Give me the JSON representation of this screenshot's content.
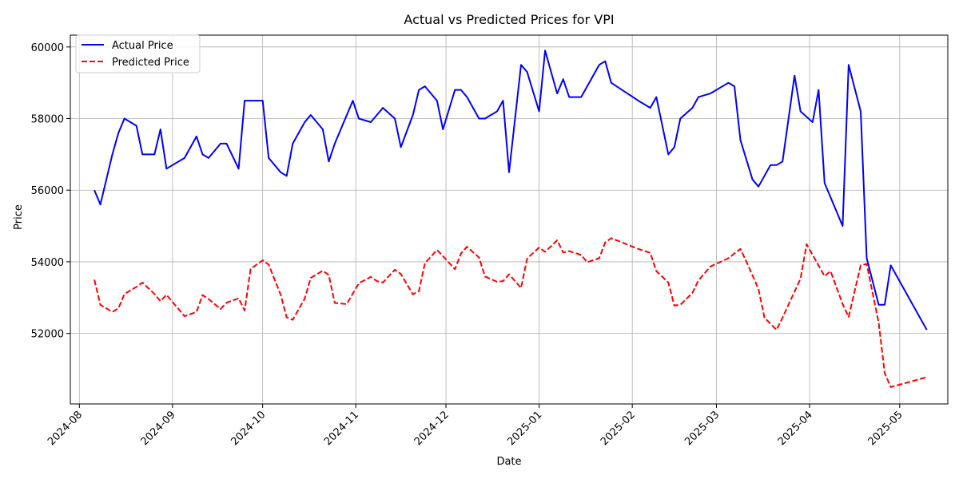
{
  "chart_data": {
    "type": "line",
    "title": "Actual vs Predicted Prices for VPI",
    "xlabel": "Date",
    "ylabel": "Price",
    "xlim": [
      "2024-07-29",
      "2025-05-17"
    ],
    "ylim": [
      50030,
      60330
    ],
    "x_ticks": [
      "2024-08-01",
      "2024-09-01",
      "2024-10-01",
      "2024-11-01",
      "2024-12-01",
      "2025-01-01",
      "2025-02-01",
      "2025-03-01",
      "2025-04-01",
      "2025-05-01"
    ],
    "x_tick_labels": [
      "2024-08",
      "2024-09",
      "2024-10",
      "2024-11",
      "2024-12",
      "2025-01",
      "2025-02",
      "2025-03",
      "2025-04",
      "2025-05"
    ],
    "y_ticks": [
      52000,
      54000,
      56000,
      58000,
      60000
    ],
    "y_tick_labels": [
      "52000",
      "54000",
      "56000",
      "58000",
      "60000"
    ],
    "grid": true,
    "legend_position": "upper-left",
    "series": [
      {
        "name": "Actual Price",
        "color": "#0000ff",
        "style": "solid",
        "points": [
          [
            "2024-08-06",
            56000
          ],
          [
            "2024-08-08",
            55600
          ],
          [
            "2024-08-12",
            57000
          ],
          [
            "2024-08-14",
            57600
          ],
          [
            "2024-08-16",
            58000
          ],
          [
            "2024-08-20",
            57800
          ],
          [
            "2024-08-22",
            57000
          ],
          [
            "2024-08-26",
            57000
          ],
          [
            "2024-08-28",
            57700
          ],
          [
            "2024-08-30",
            56600
          ],
          [
            "2024-09-05",
            56900
          ],
          [
            "2024-09-09",
            57500
          ],
          [
            "2024-09-11",
            57000
          ],
          [
            "2024-09-13",
            56900
          ],
          [
            "2024-09-17",
            57300
          ],
          [
            "2024-09-19",
            57300
          ],
          [
            "2024-09-23",
            56600
          ],
          [
            "2024-09-25",
            58500
          ],
          [
            "2024-10-01",
            58500
          ],
          [
            "2024-10-03",
            56900
          ],
          [
            "2024-10-07",
            56500
          ],
          [
            "2024-10-09",
            56400
          ],
          [
            "2024-10-11",
            57300
          ],
          [
            "2024-10-15",
            57900
          ],
          [
            "2024-10-17",
            58100
          ],
          [
            "2024-10-21",
            57700
          ],
          [
            "2024-10-23",
            56800
          ],
          [
            "2024-10-25",
            57300
          ],
          [
            "2024-10-31",
            58500
          ],
          [
            "2024-11-02",
            58000
          ],
          [
            "2024-11-06",
            57900
          ],
          [
            "2024-11-10",
            58300
          ],
          [
            "2024-11-14",
            58000
          ],
          [
            "2024-11-16",
            57200
          ],
          [
            "2024-11-20",
            58100
          ],
          [
            "2024-11-22",
            58800
          ],
          [
            "2024-11-24",
            58900
          ],
          [
            "2024-11-28",
            58500
          ],
          [
            "2024-11-30",
            57700
          ],
          [
            "2024-12-04",
            58800
          ],
          [
            "2024-12-06",
            58800
          ],
          [
            "2024-12-08",
            58600
          ],
          [
            "2024-12-12",
            58000
          ],
          [
            "2024-12-14",
            58000
          ],
          [
            "2024-12-18",
            58200
          ],
          [
            "2024-12-20",
            58500
          ],
          [
            "2024-12-22",
            56500
          ],
          [
            "2024-12-24",
            58000
          ],
          [
            "2024-12-26",
            59500
          ],
          [
            "2024-12-28",
            59300
          ],
          [
            "2025-01-01",
            58200
          ],
          [
            "2025-01-03",
            59900
          ],
          [
            "2025-01-07",
            58700
          ],
          [
            "2025-01-09",
            59100
          ],
          [
            "2025-01-11",
            58600
          ],
          [
            "2025-01-15",
            58600
          ],
          [
            "2025-01-21",
            59500
          ],
          [
            "2025-01-23",
            59600
          ],
          [
            "2025-01-25",
            59000
          ],
          [
            "2025-02-03",
            58500
          ],
          [
            "2025-02-07",
            58300
          ],
          [
            "2025-02-09",
            58600
          ],
          [
            "2025-02-13",
            57000
          ],
          [
            "2025-02-15",
            57200
          ],
          [
            "2025-02-17",
            58000
          ],
          [
            "2025-02-21",
            58300
          ],
          [
            "2025-02-23",
            58600
          ],
          [
            "2025-02-27",
            58700
          ],
          [
            "2025-03-05",
            59000
          ],
          [
            "2025-03-07",
            58900
          ],
          [
            "2025-03-09",
            57400
          ],
          [
            "2025-03-13",
            56300
          ],
          [
            "2025-03-15",
            56100
          ],
          [
            "2025-03-19",
            56700
          ],
          [
            "2025-03-21",
            56700
          ],
          [
            "2025-03-23",
            56800
          ],
          [
            "2025-03-27",
            59200
          ],
          [
            "2025-03-29",
            58200
          ],
          [
            "2025-04-02",
            57900
          ],
          [
            "2025-04-04",
            58800
          ],
          [
            "2025-04-06",
            56200
          ],
          [
            "2025-04-12",
            55000
          ],
          [
            "2025-04-14",
            59500
          ],
          [
            "2025-04-18",
            58200
          ],
          [
            "2025-04-20",
            54100
          ],
          [
            "2025-04-24",
            52800
          ],
          [
            "2025-04-26",
            52800
          ],
          [
            "2025-04-28",
            53900
          ],
          [
            "2025-05-10",
            52100
          ]
        ]
      },
      {
        "name": "Predicted Price",
        "color": "#ff0000",
        "style": "dashed",
        "points": [
          [
            "2024-08-06",
            53500
          ],
          [
            "2024-08-08",
            52800
          ],
          [
            "2024-08-12",
            52600
          ],
          [
            "2024-08-14",
            52700
          ],
          [
            "2024-08-16",
            53100
          ],
          [
            "2024-08-20",
            53300
          ],
          [
            "2024-08-22",
            53420
          ],
          [
            "2024-08-26",
            53100
          ],
          [
            "2024-08-28",
            52900
          ],
          [
            "2024-08-30",
            53080
          ],
          [
            "2024-09-05",
            52480
          ],
          [
            "2024-09-09",
            52600
          ],
          [
            "2024-09-11",
            53070
          ],
          [
            "2024-09-13",
            52960
          ],
          [
            "2024-09-17",
            52680
          ],
          [
            "2024-09-19",
            52860
          ],
          [
            "2024-09-23",
            52980
          ],
          [
            "2024-09-25",
            52640
          ],
          [
            "2024-09-27",
            53800
          ],
          [
            "2024-10-01",
            54040
          ],
          [
            "2024-10-03",
            53920
          ],
          [
            "2024-10-07",
            53080
          ],
          [
            "2024-10-09",
            52450
          ],
          [
            "2024-10-11",
            52380
          ],
          [
            "2024-10-15",
            52970
          ],
          [
            "2024-10-17",
            53550
          ],
          [
            "2024-10-21",
            53750
          ],
          [
            "2024-10-23",
            53630
          ],
          [
            "2024-10-25",
            52850
          ],
          [
            "2024-10-29",
            52820
          ],
          [
            "2024-11-02",
            53400
          ],
          [
            "2024-11-06",
            53580
          ],
          [
            "2024-11-08",
            53460
          ],
          [
            "2024-11-10",
            53420
          ],
          [
            "2024-11-14",
            53780
          ],
          [
            "2024-11-16",
            53660
          ],
          [
            "2024-11-20",
            53090
          ],
          [
            "2024-11-22",
            53180
          ],
          [
            "2024-11-24",
            53960
          ],
          [
            "2024-11-28",
            54330
          ],
          [
            "2024-11-30",
            54160
          ],
          [
            "2024-12-04",
            53790
          ],
          [
            "2024-12-06",
            54230
          ],
          [
            "2024-12-08",
            54420
          ],
          [
            "2024-12-12",
            54120
          ],
          [
            "2024-12-14",
            53590
          ],
          [
            "2024-12-18",
            53440
          ],
          [
            "2024-12-20",
            53460
          ],
          [
            "2024-12-22",
            53650
          ],
          [
            "2024-12-26",
            53270
          ],
          [
            "2024-12-28",
            54090
          ],
          [
            "2025-01-01",
            54400
          ],
          [
            "2025-01-03",
            54280
          ],
          [
            "2025-01-07",
            54600
          ],
          [
            "2025-01-09",
            54260
          ],
          [
            "2025-01-11",
            54300
          ],
          [
            "2025-01-15",
            54190
          ],
          [
            "2025-01-17",
            53990
          ],
          [
            "2025-01-21",
            54100
          ],
          [
            "2025-01-23",
            54540
          ],
          [
            "2025-01-25",
            54660
          ],
          [
            "2025-02-03",
            54360
          ],
          [
            "2025-02-07",
            54250
          ],
          [
            "2025-02-09",
            53740
          ],
          [
            "2025-02-13",
            53420
          ],
          [
            "2025-02-15",
            52780
          ],
          [
            "2025-02-17",
            52800
          ],
          [
            "2025-02-21",
            53130
          ],
          [
            "2025-02-23",
            53480
          ],
          [
            "2025-02-27",
            53870
          ],
          [
            "2025-03-05",
            54100
          ],
          [
            "2025-03-09",
            54360
          ],
          [
            "2025-03-11",
            54000
          ],
          [
            "2025-03-15",
            53240
          ],
          [
            "2025-03-17",
            52440
          ],
          [
            "2025-03-21",
            52100
          ],
          [
            "2025-03-23",
            52440
          ],
          [
            "2025-03-29",
            53530
          ],
          [
            "2025-03-31",
            54490
          ],
          [
            "2025-04-06",
            53600
          ],
          [
            "2025-04-08",
            53740
          ],
          [
            "2025-04-12",
            52820
          ],
          [
            "2025-04-14",
            52460
          ],
          [
            "2025-04-18",
            53900
          ],
          [
            "2025-04-20",
            53940
          ],
          [
            "2025-04-24",
            52300
          ],
          [
            "2025-04-26",
            50900
          ],
          [
            "2025-04-28",
            50500
          ],
          [
            "2025-05-10",
            50780
          ]
        ]
      }
    ]
  }
}
